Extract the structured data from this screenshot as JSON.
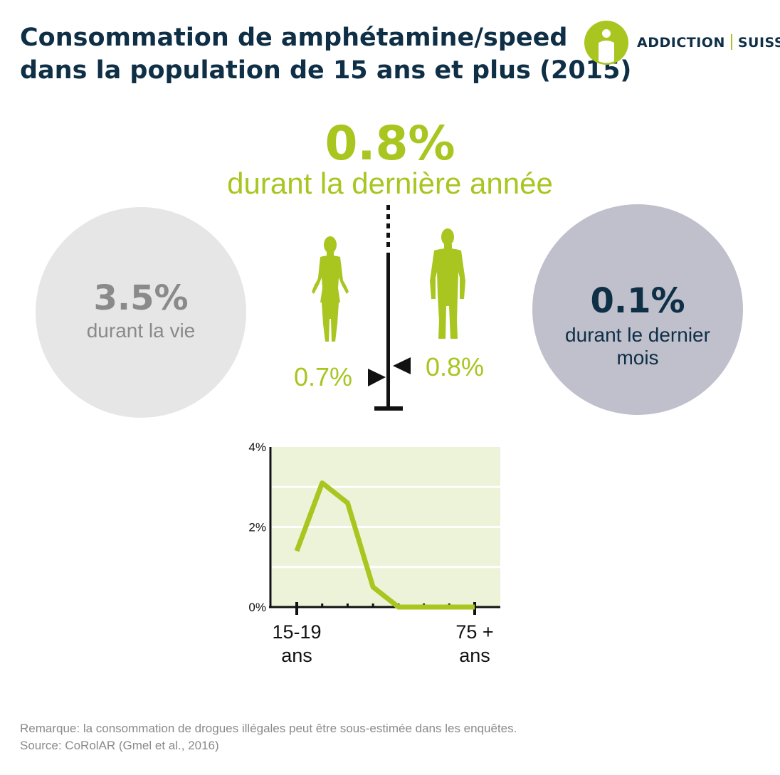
{
  "header": {
    "title_line1": "Consommation de amphétamine/speed",
    "title_line2": "dans la population de 15 ans et plus (2015)"
  },
  "logo": {
    "word1": "ADDICTION",
    "word2": "SUISSE"
  },
  "main": {
    "value": "0.8%",
    "label": "durant la dernière année"
  },
  "lifetime": {
    "value": "3.5%",
    "label": "durant la vie"
  },
  "last_month": {
    "value": "0.1%",
    "label": "durant le dernier mois"
  },
  "gender": {
    "women": "0.7%",
    "men": "0.8%"
  },
  "colors": {
    "green": "#a8c520",
    "navy": "#0e2f46",
    "grey_text": "#8a8a8a",
    "chart_bg": "#edf3d8"
  },
  "chart_data": {
    "type": "line",
    "ylim": [
      0,
      4
    ],
    "yticks": [
      "0%",
      "2%",
      "4%"
    ],
    "x_labels": {
      "first": "15-19 ans",
      "last": "75 + ans"
    },
    "values": [
      1.4,
      3.1,
      2.6,
      0.5,
      0.0,
      0.0,
      0.0,
      0.0
    ]
  },
  "footer": {
    "note": "Remarque: la consommation de drogues illégales peut être sous-estimée dans les enquêtes.",
    "source": "Source: CoRolAR (Gmel et al., 2016)"
  }
}
